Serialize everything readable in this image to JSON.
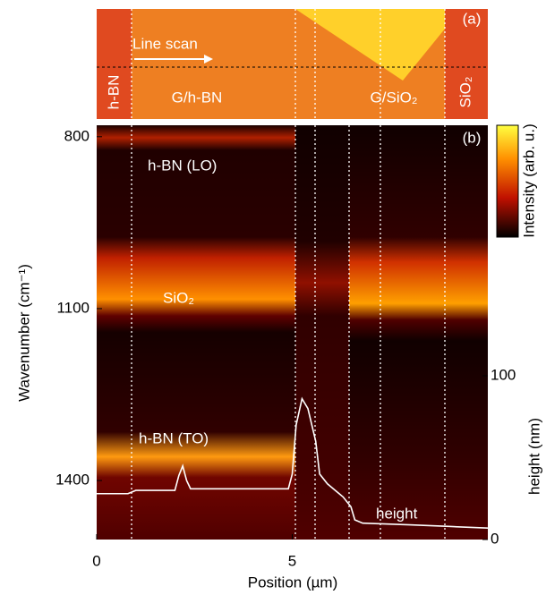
{
  "chart_data": {
    "type": "heatmap-line",
    "panel_a_label": "(a)",
    "panel_b_label": "(b)",
    "line_scan_label": "Line scan",
    "region_labels": [
      "h-BN",
      "G/h-BN",
      "G/SiO₂",
      "SiO₂"
    ],
    "band_labels": [
      "h-BN (LO)",
      "SiO₂",
      "h-BN (TO)"
    ],
    "x_label": "Position (µm)",
    "y_label": "Wavenumber (cm⁻¹)",
    "y2_label": "height (nm)",
    "colorbar_label": "Intensity (arb. u.)",
    "xlim": [
      0,
      10
    ],
    "xticks": [
      0,
      5
    ],
    "ylim": [
      780,
      1503
    ],
    "yticks": [
      800,
      1100,
      1400
    ],
    "y2lim": [
      0,
      253
    ],
    "y2ticks": [
      0,
      100
    ],
    "series": [
      {
        "name": "height",
        "color": "#ffffff",
        "axis": "y2",
        "x": [
          0,
          0.8,
          1.0,
          2.0,
          2.1,
          2.2,
          2.3,
          2.4,
          4.9,
          5.0,
          5.1,
          5.25,
          5.4,
          5.6,
          5.7,
          5.9,
          6.1,
          6.3,
          6.5,
          6.6,
          6.8,
          8,
          9,
          10
        ],
        "values": [
          28,
          28,
          30,
          30,
          39,
          45,
          36,
          31,
          31,
          40,
          70,
          86,
          80,
          60,
          40,
          34,
          30,
          26,
          20,
          12,
          10,
          9,
          8,
          7
        ]
      }
    ]
  }
}
